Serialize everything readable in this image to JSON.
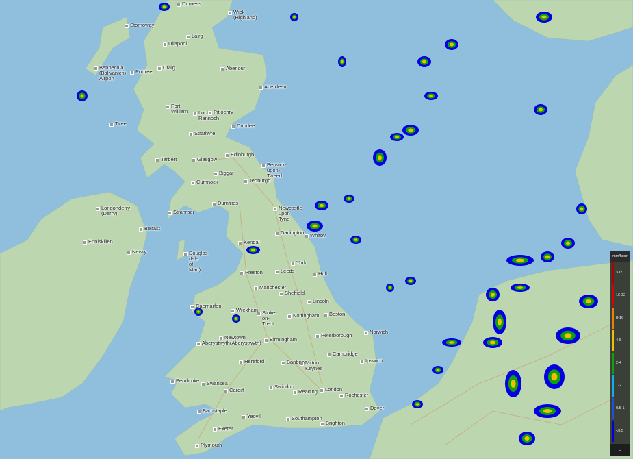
{
  "map": {
    "base": "terrain",
    "overlay": "rain-radar"
  },
  "places": [
    "Durness",
    "Wick\n(Highland)",
    "Stornoway",
    "Lairg",
    "Ullapool",
    "Aberlour",
    "Benbecula\n(Balivanich)\nAirport",
    "Portree",
    "Craig",
    "Aberdeen",
    "Fort\nWilliam",
    "Loch\nRannoch",
    "Pitlochry",
    "Tiree",
    "Dundee",
    "Strathyre",
    "Tarbert",
    "Glasgow",
    "Edinburgh",
    "Berwick-\nupon-\nTweed",
    "Biggar",
    "Cumnock",
    "Jedburgh",
    "Londonderry\n(Derry)",
    "Dumfries",
    "Stranraer",
    "Newcastle\nupon\nTyne",
    "Belfast",
    "Enniskillen",
    "Darlington",
    "Whitby",
    "Kendal",
    "Newry",
    "Douglas\n(Isle\nof\nMan)",
    "York",
    "Leeds",
    "Preston",
    "Hull",
    "Manchester",
    "Sheffield",
    "Lincoln",
    "Caernarfon",
    "Wrexham",
    "Stoke-\non-\nTrent",
    "Nottingham",
    "Boston",
    "Norwich",
    "Peterborough",
    "Newtown",
    "Aberystwyth(Aberystwyth)",
    "Birmingham",
    "Cambridge",
    "Hereford",
    "Banbury",
    "Milton\nKeynes",
    "Ipswich",
    "Pembroke",
    "Swansea",
    "Cardiff",
    "Swindon",
    "Reading",
    "London",
    "Rochester",
    "Dover",
    "Barnstaple",
    "Yeovil",
    "Southampton",
    "Brighton",
    "Exeter",
    "Plymouth"
  ],
  "legend": {
    "unit": "mm/hour",
    "expand_icon": "chevron-down-icon",
    "bands": [
      {
        "label": ">32",
        "color": "#b00000"
      },
      {
        "label": "16-32",
        "color": "#e00000"
      },
      {
        "label": "8-16",
        "color": "#f08000"
      },
      {
        "label": "4-8",
        "color": "#f0c000"
      },
      {
        "label": "2-4",
        "color": "#10a010"
      },
      {
        "label": "1-2",
        "color": "#10b0f0"
      },
      {
        "label": "0.5-1",
        "color": "#2050e0"
      },
      {
        "label": "<0.5",
        "color": "#0000e0"
      }
    ]
  },
  "colors": {
    "sea": "#8fbfdc",
    "land": "#bcd6b0",
    "roads": "#c8a878"
  }
}
